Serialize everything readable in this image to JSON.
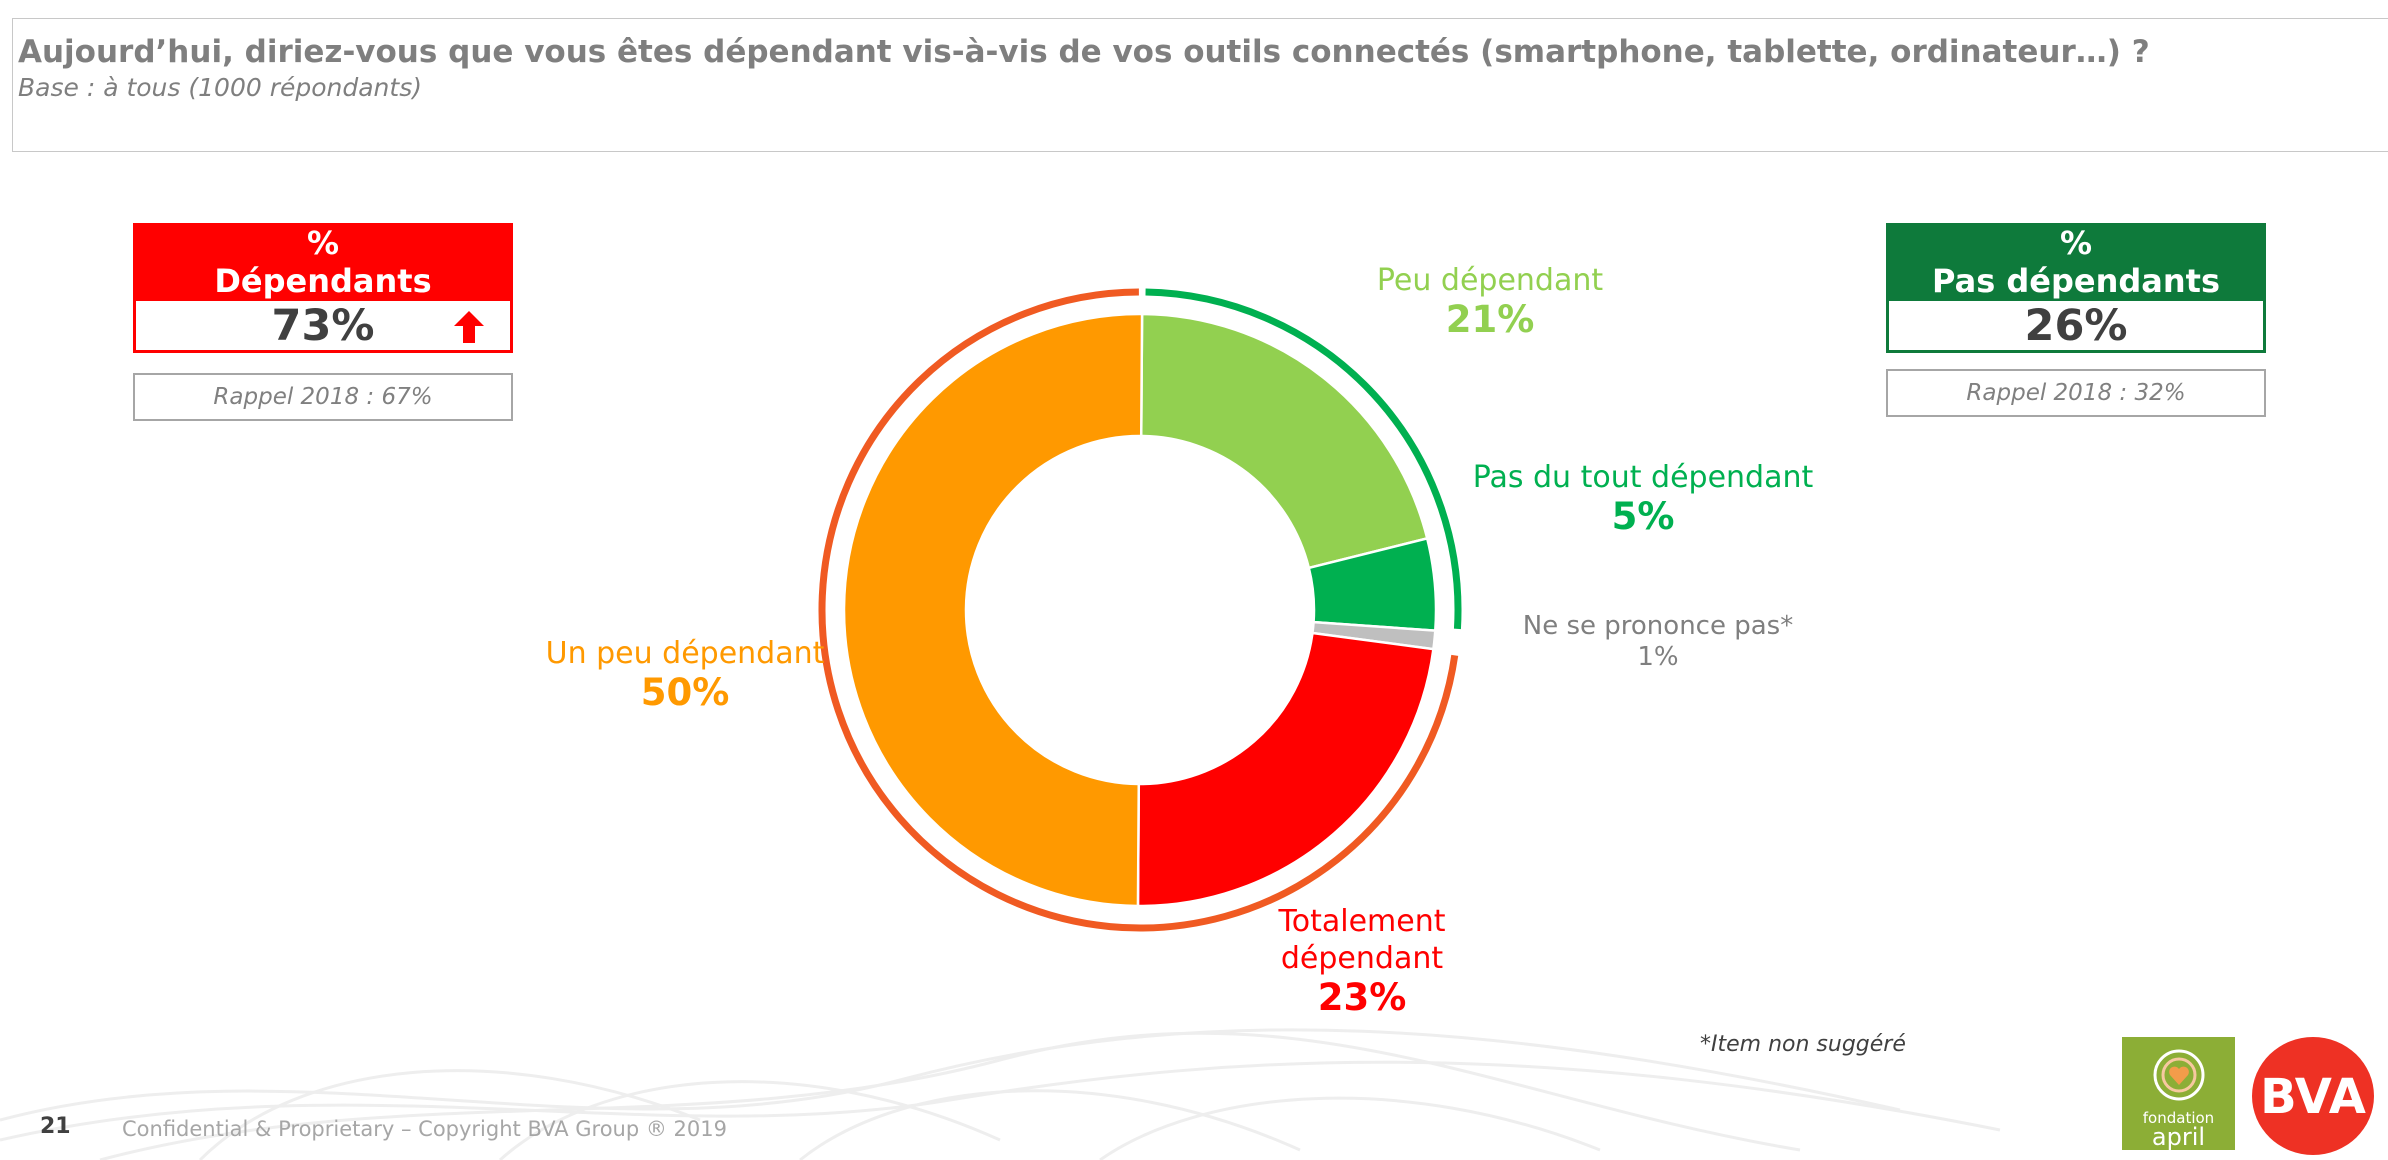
{
  "header": {
    "question": "Aujourd’hui, diriez-vous que vous êtes dépendant vis-à-vis de vos outils connectés (smartphone, tablette, ordinateur…) ?",
    "base": "Base : à tous (1000 répondants)"
  },
  "kpi_left": {
    "pct_sign": "%",
    "title": "Dépendants",
    "value": "73%",
    "recall": "Rappel 2018 : 67%",
    "trend_icon": "arrow-up-icon",
    "color": "#ff0000"
  },
  "kpi_right": {
    "pct_sign": "%",
    "title": "Pas dépendants",
    "value": "26%",
    "recall": "Rappel 2018 : 32%",
    "color": "#0e7a3b"
  },
  "chart_data": {
    "type": "pie",
    "variant": "donut",
    "categories": [
      "Peu dépendant",
      "Pas du tout dépendant",
      "Ne se prononce pas*",
      "Totalement dépendant",
      "Un peu dépendant"
    ],
    "values": [
      21,
      5,
      1,
      23,
      50
    ],
    "labels": [
      "21%",
      "5%",
      "1%",
      "23%",
      "50%"
    ],
    "colors": [
      "#92d050",
      "#00b050",
      "#bfbfbf",
      "#ff0000",
      "#ff9900"
    ],
    "groups": [
      {
        "name": "Pas dépendants",
        "members": [
          "Peu dépendant",
          "Pas du tout dépendant"
        ],
        "color": "#00b050"
      },
      {
        "name": "Dépendants",
        "members": [
          "Totalement dépendant",
          "Un peu dépendant"
        ],
        "color": "#f05a22"
      }
    ]
  },
  "footnote": "*Item non suggéré",
  "page_number": "21",
  "copyright": "Confidential & Proprietary – Copyright BVA Group ®  2019",
  "logos": {
    "april_line1": "fondation",
    "april_line2": "april",
    "bva": "BVA"
  }
}
